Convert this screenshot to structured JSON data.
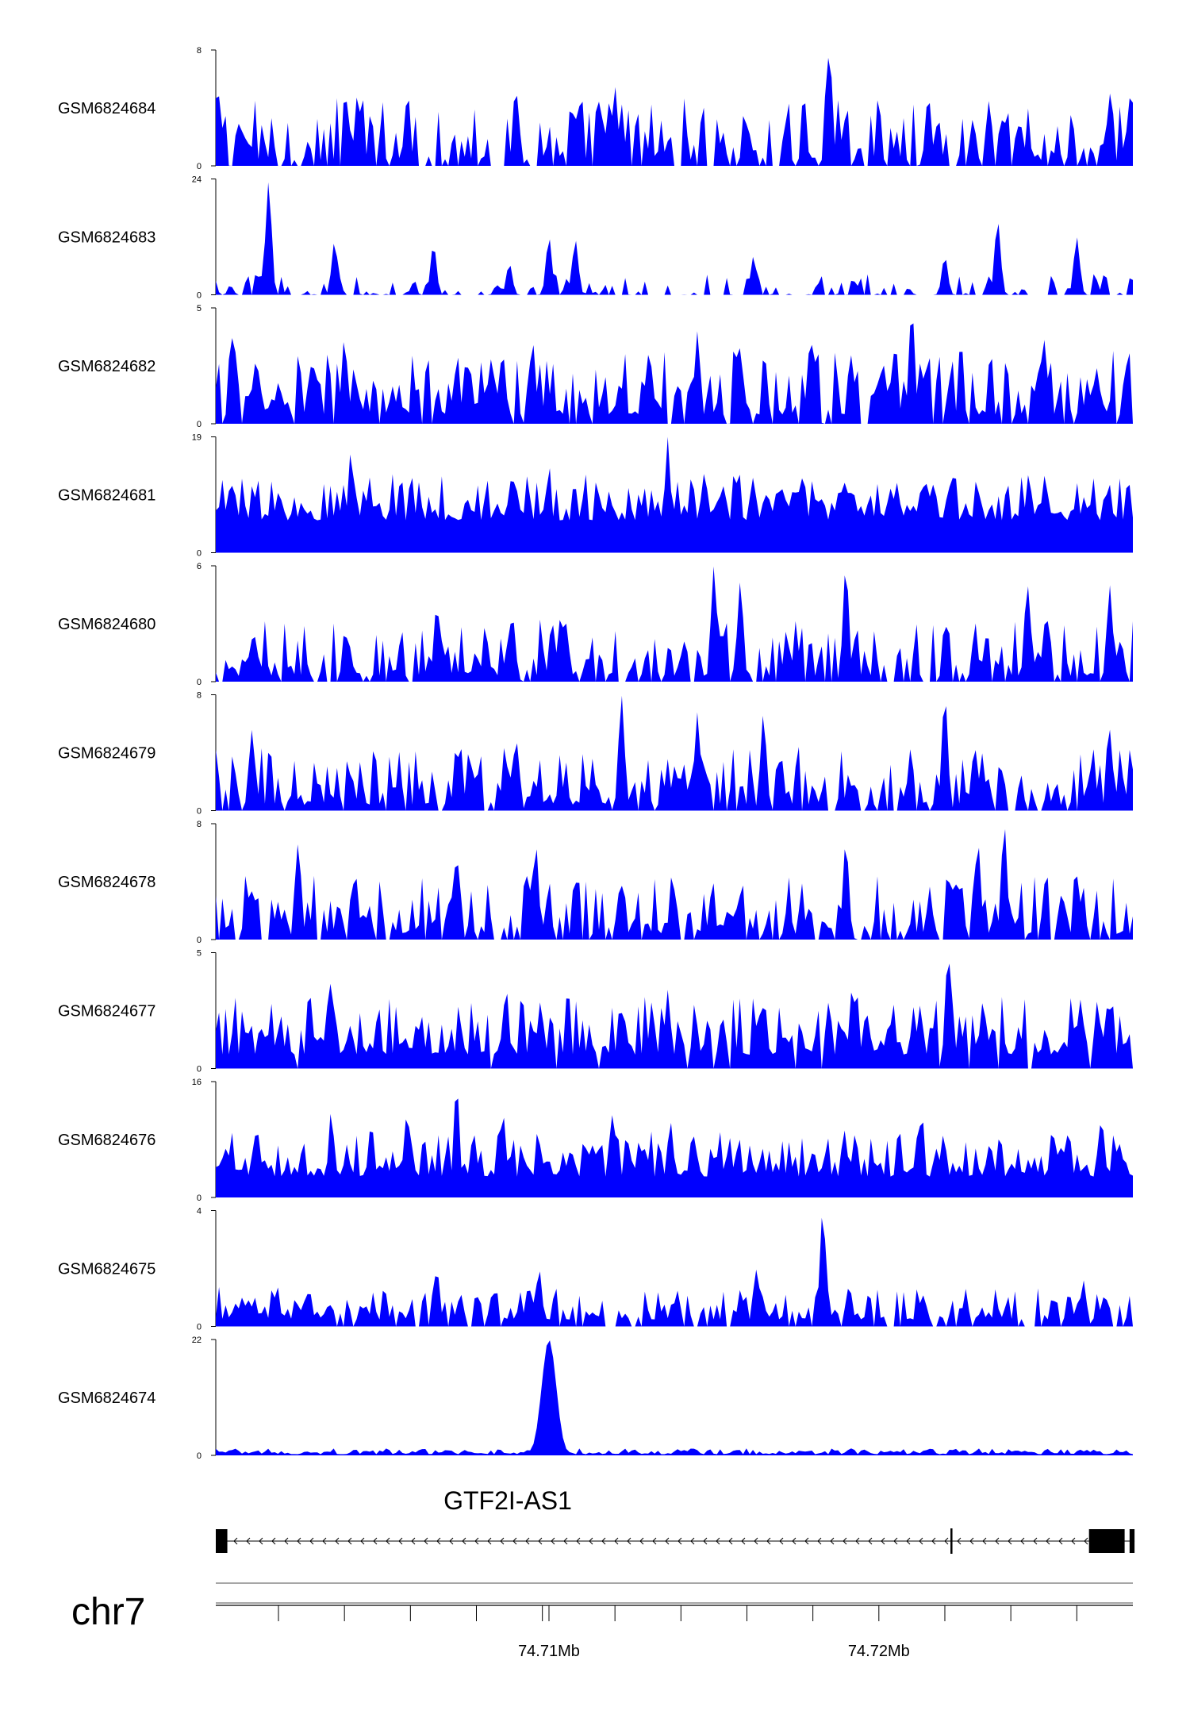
{
  "chart_data": {
    "type": "area",
    "chromosome": "chr7",
    "x_range_mb": [
      74.6999,
      74.7277
    ],
    "colors": {
      "signal": "#0000ff",
      "gene": "#000000",
      "axis": "#000000"
    },
    "tracks": [
      {
        "name": "GSM6824684",
        "ymax": 8,
        "ylim": [
          0,
          8
        ],
        "peaks": [
          [
            74.7,
            4.8
          ],
          [
            74.7042,
            5.0
          ],
          [
            74.7057,
            4.6
          ],
          [
            74.709,
            5.2
          ],
          [
            74.712,
            5.5
          ],
          [
            74.7185,
            8.0
          ],
          [
            74.7215,
            4.9
          ],
          [
            74.7245,
            1.8
          ],
          [
            74.727,
            5.0
          ]
        ]
      },
      {
        "name": "GSM6824683",
        "ymax": 24,
        "ylim": [
          0,
          24
        ],
        "peaks": [
          [
            74.7015,
            23.5
          ],
          [
            74.7035,
            11.0
          ],
          [
            74.7065,
            10.5
          ],
          [
            74.7088,
            6.5
          ],
          [
            74.71,
            12.0
          ],
          [
            74.7108,
            11.5
          ],
          [
            74.7162,
            8.0
          ],
          [
            74.722,
            8.0
          ],
          [
            74.7236,
            15.5
          ],
          [
            74.726,
            12.0
          ]
        ]
      },
      {
        "name": "GSM6824682",
        "ymax": 5,
        "ylim": [
          0,
          5
        ],
        "peaks": [
          [
            74.7004,
            3.7
          ],
          [
            74.7038,
            3.7
          ],
          [
            74.7095,
            3.6
          ],
          [
            74.7145,
            4.0
          ],
          [
            74.7158,
            3.3
          ],
          [
            74.718,
            3.6
          ],
          [
            74.721,
            5.0
          ],
          [
            74.725,
            3.7
          ]
        ]
      },
      {
        "name": "GSM6824681",
        "ymax": 19,
        "ylim": [
          0,
          19
        ],
        "peaks": [
          [
            74.704,
            17.0
          ],
          [
            74.71,
            14.5
          ],
          [
            74.7136,
            19.0
          ],
          [
            74.719,
            12.5
          ],
          [
            74.7222,
            13.5
          ],
          [
            74.726,
            11.5
          ]
        ]
      },
      {
        "name": "GSM6824680",
        "ymax": 6,
        "ylim": [
          0,
          6
        ],
        "peaks": [
          [
            74.7066,
            4.0
          ],
          [
            74.7089,
            3.3
          ],
          [
            74.715,
            6.0
          ],
          [
            74.7158,
            5.2
          ],
          [
            74.719,
            6.0
          ],
          [
            74.7245,
            5.1
          ],
          [
            74.727,
            5.0
          ]
        ]
      },
      {
        "name": "GSM6824679",
        "ymax": 8,
        "ylim": [
          0,
          8
        ],
        "peaks": [
          [
            74.701,
            5.6
          ],
          [
            74.7073,
            4.4
          ],
          [
            74.709,
            5.0
          ],
          [
            74.7122,
            8.0
          ],
          [
            74.7145,
            6.8
          ],
          [
            74.7165,
            6.7
          ],
          [
            74.722,
            8.0
          ],
          [
            74.727,
            5.6
          ]
        ]
      },
      {
        "name": "GSM6824678",
        "ymax": 8,
        "ylim": [
          0,
          8
        ],
        "peaks": [
          [
            74.7024,
            6.7
          ],
          [
            74.7072,
            5.9
          ],
          [
            74.7096,
            6.6
          ],
          [
            74.719,
            6.8
          ],
          [
            74.723,
            6.8
          ],
          [
            74.7238,
            8.0
          ],
          [
            74.726,
            4.4
          ]
        ]
      },
      {
        "name": "GSM6824677",
        "ymax": 5,
        "ylim": [
          0,
          5
        ],
        "peaks": [
          [
            74.7034,
            3.8
          ],
          [
            74.7087,
            3.5
          ],
          [
            74.7136,
            3.4
          ],
          [
            74.7192,
            3.6
          ],
          [
            74.7221,
            5.0
          ],
          [
            74.7261,
            3.0
          ]
        ]
      },
      {
        "name": "GSM6824676",
        "ymax": 16,
        "ylim": [
          0,
          16
        ],
        "peaks": [
          [
            74.7034,
            12.0
          ],
          [
            74.7057,
            12.0
          ],
          [
            74.7072,
            15.7
          ],
          [
            74.7086,
            12.0
          ],
          [
            74.7119,
            11.5
          ],
          [
            74.7137,
            10.3
          ],
          [
            74.7213,
            11.8
          ],
          [
            74.7267,
            10.0
          ]
        ]
      },
      {
        "name": "GSM6824675",
        "ymax": 4,
        "ylim": [
          0,
          4
        ],
        "peaks": [
          [
            74.7066,
            2.0
          ],
          [
            74.7097,
            2.0
          ],
          [
            74.7163,
            2.0
          ],
          [
            74.7183,
            4.0
          ],
          [
            74.7262,
            1.6
          ]
        ]
      },
      {
        "name": "GSM6824674",
        "ymax": 22,
        "ylim": [
          0,
          22
        ],
        "peaks": [
          [
            74.71,
            22.0
          ]
        ]
      }
    ],
    "gene": {
      "name": "GTF2I-AS1",
      "strand": "-",
      "exons": [
        [
          74.6999,
          74.70025
        ],
        [
          74.72217,
          74.72222
        ],
        [
          74.72637,
          74.72745
        ],
        [
          74.7276,
          74.72775
        ]
      ]
    },
    "axis_tick_labels": [
      "74.71Mb",
      "74.72Mb"
    ],
    "axis_ticks_mb": [
      74.7018,
      74.7038,
      74.7058,
      74.7078,
      74.7098,
      74.71,
      74.712,
      74.714,
      74.716,
      74.718,
      74.72,
      74.722,
      74.724,
      74.726
    ],
    "labeled_ticks_mb": [
      74.71,
      74.72
    ]
  }
}
